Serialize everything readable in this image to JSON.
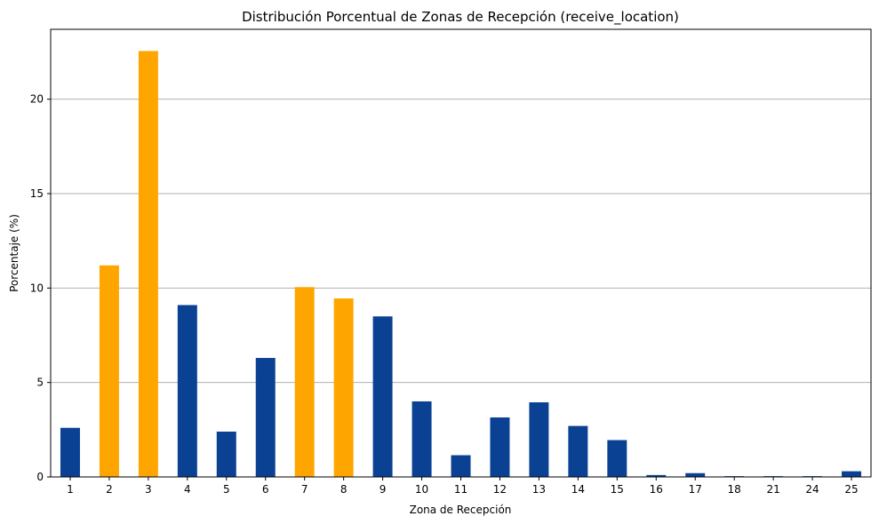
{
  "chart_data": {
    "type": "bar",
    "title": "Distribución Porcentual de Zonas de Recepción (receive_location)",
    "xlabel": "Zona de Recepción",
    "ylabel": "Porcentaje (%)",
    "categories": [
      "1",
      "2",
      "3",
      "4",
      "5",
      "6",
      "7",
      "8",
      "9",
      "10",
      "11",
      "12",
      "13",
      "14",
      "15",
      "16",
      "17",
      "18",
      "21",
      "24",
      "25"
    ],
    "values": [
      2.6,
      11.2,
      22.55,
      9.1,
      2.4,
      6.3,
      10.05,
      9.45,
      8.5,
      4.0,
      1.15,
      3.15,
      3.95,
      2.7,
      1.95,
      0.1,
      0.2,
      0.04,
      0.04,
      0.04,
      0.3
    ],
    "highlighted": [
      false,
      true,
      true,
      false,
      false,
      false,
      true,
      true,
      false,
      false,
      false,
      false,
      false,
      false,
      false,
      false,
      false,
      false,
      false,
      false,
      false
    ],
    "ylim": [
      0,
      23.7
    ],
    "yticks": [
      0,
      5,
      10,
      15,
      20
    ],
    "grid": "y",
    "colors": {
      "base": "#0b4193",
      "highlight": "#ffa500",
      "grid": "#b0b0b0"
    }
  }
}
